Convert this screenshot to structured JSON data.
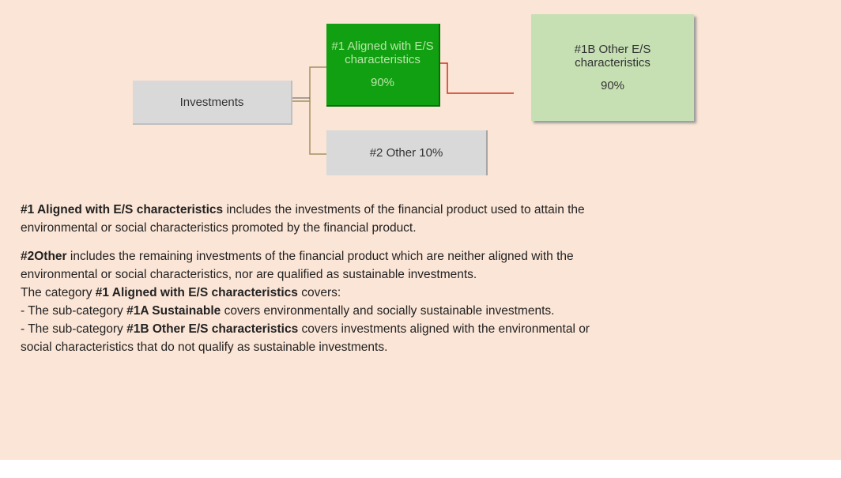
{
  "nodes": [
    {
      "label_lines": [
        "Investments"
      ]
    },
    {
      "label_lines": [
        "#1 Aligned with E/S",
        "characteristics"
      ],
      "value": "90%"
    },
    {
      "label_lines": [
        "#1B Other E/S",
        "characteristics"
      ],
      "value": "90%"
    },
    {
      "label_lines": [
        "#2 Other 10%"
      ]
    }
  ],
  "paragraphs": [
    [
      [
        {
          "text": "#1 Aligned with E/S characteristics",
          "bold": true
        },
        {
          "text": " includes the investments of the financial product used to attain the",
          "bold": false
        }
      ],
      [
        {
          "text": "environmental or social characteristics promoted by the financial product.",
          "bold": false
        }
      ]
    ],
    [
      [
        {
          "text": "#2Other",
          "bold": true
        },
        {
          "text": " includes the remaining investments of the financial product which are neither aligned with the",
          "bold": false
        }
      ],
      [
        {
          "text": "environmental or social characteristics, nor are qualified as sustainable investments.",
          "bold": false
        }
      ],
      [
        {
          "text": "The category ",
          "bold": false
        },
        {
          "text": "#1 Aligned with E/S characteristics",
          "bold": true
        },
        {
          "text": " covers:",
          "bold": false
        }
      ],
      [
        {
          "text": "- The sub-category ",
          "bold": false
        },
        {
          "text": "#1A Sustainable",
          "bold": true
        },
        {
          "text": " covers environmentally and socially sustainable investments.",
          "bold": false
        }
      ],
      [
        {
          "text": "- The sub-category ",
          "bold": false
        },
        {
          "text": "#1B Other E/S characteristics",
          "bold": true
        },
        {
          "text": " covers investments aligned with the environmental or",
          "bold": false
        }
      ],
      [
        {
          "text": "social characteristics that do not qualify as sustainable investments.",
          "bold": false
        }
      ]
    ]
  ]
}
